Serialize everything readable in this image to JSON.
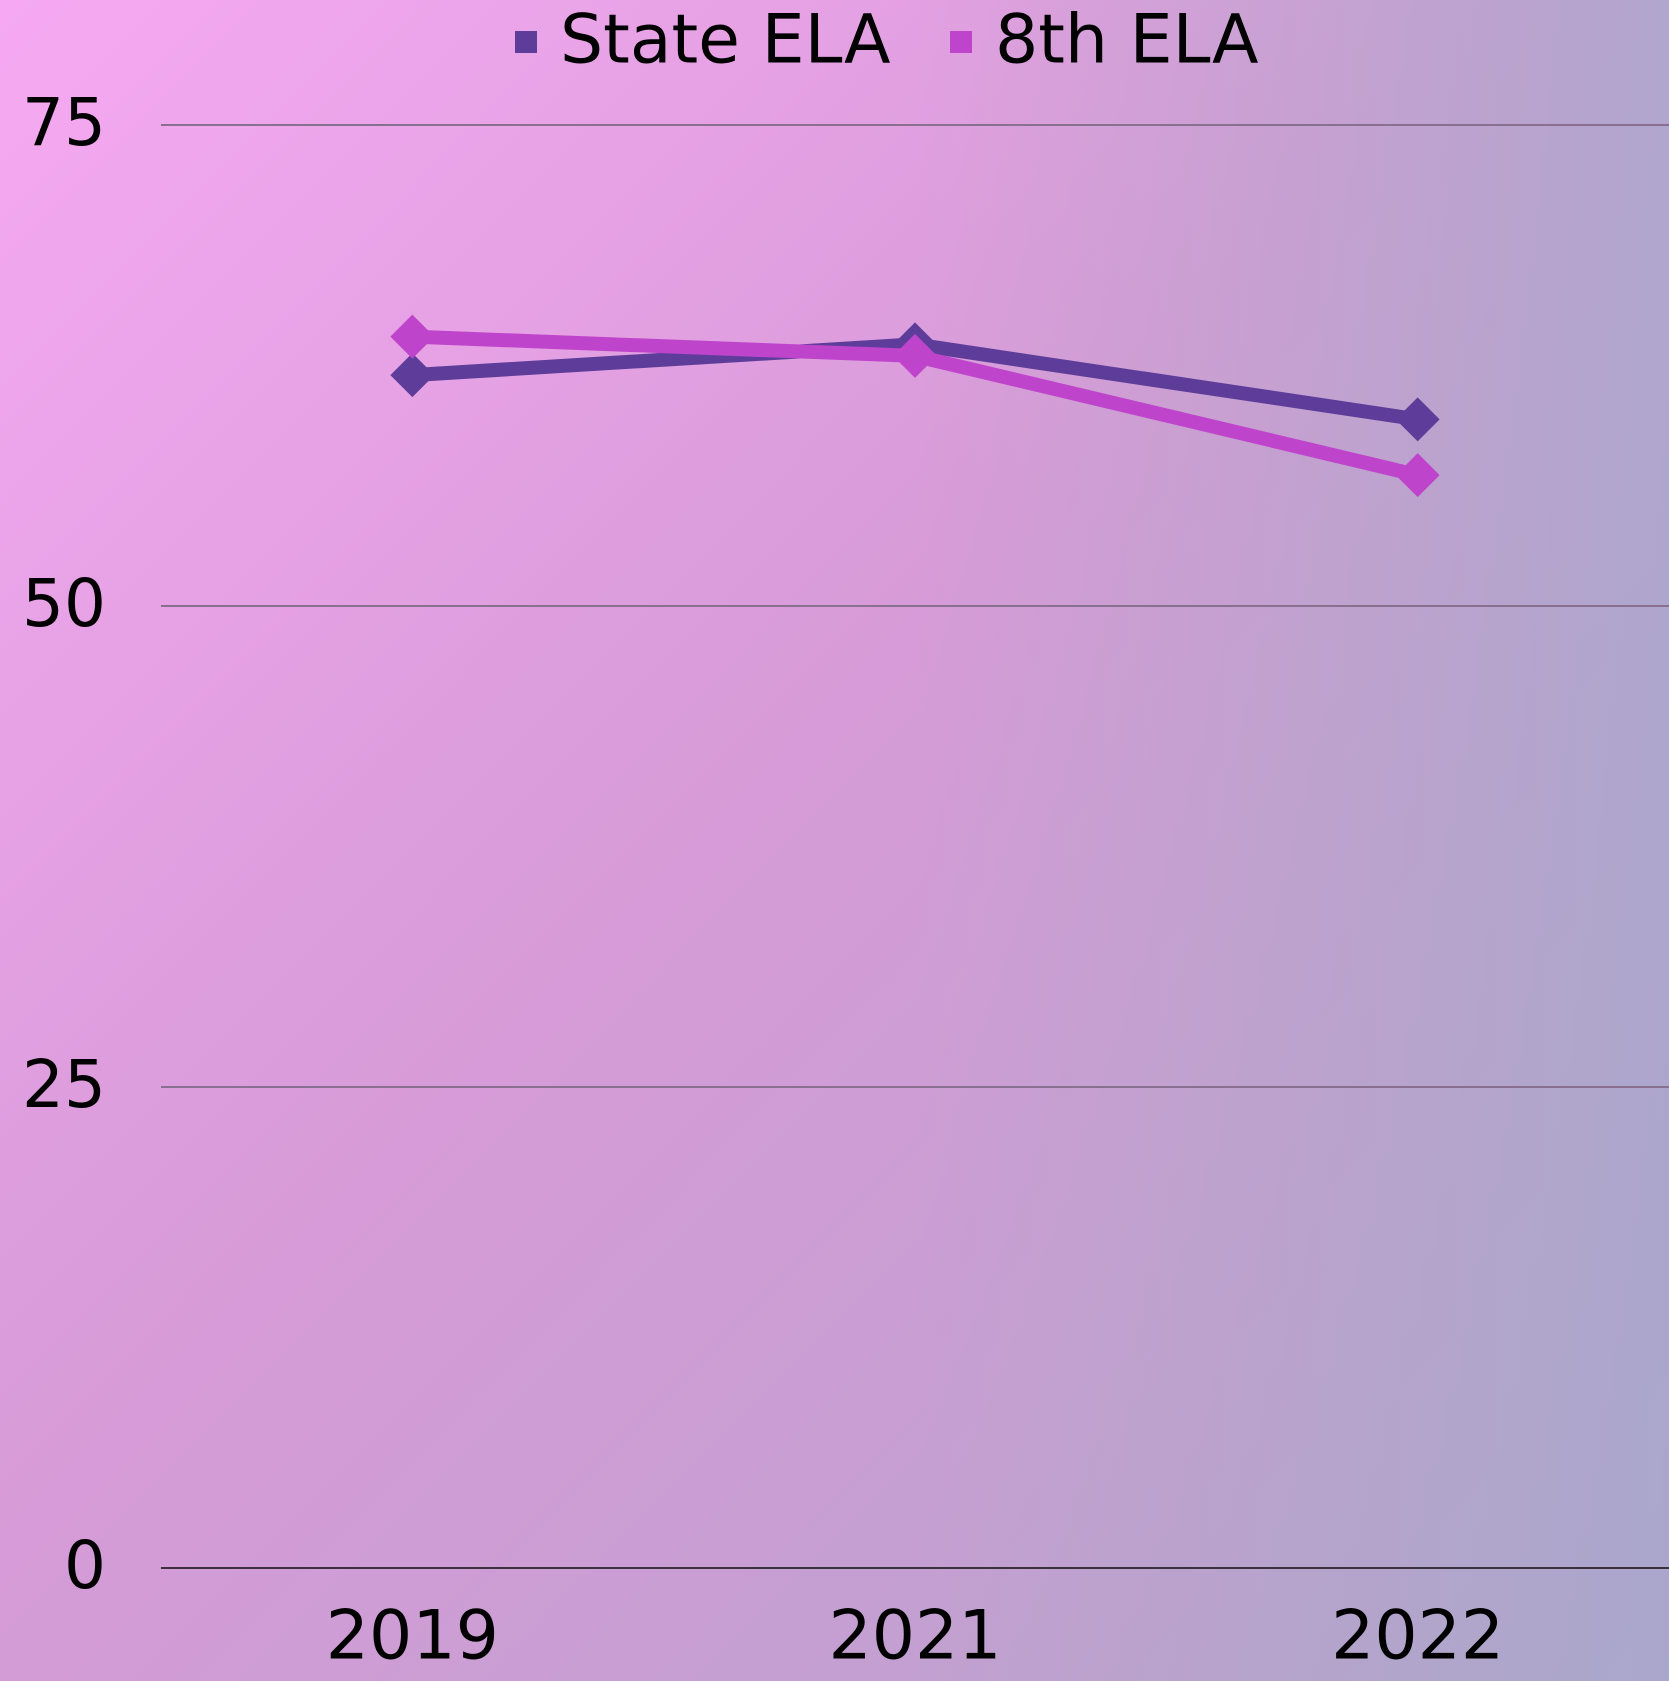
{
  "chart_data": {
    "type": "line",
    "categories": [
      "2019",
      "2021",
      "2022"
    ],
    "series": [
      {
        "name": "State ELA",
        "color": "#5e3d9a",
        "values": [
          62,
          63.6,
          59.7
        ]
      },
      {
        "name": "8th ELA",
        "color": "#bf44cc",
        "values": [
          64,
          63,
          56.8
        ]
      }
    ],
    "ylim": [
      0,
      75
    ],
    "yticks": [
      0,
      25,
      50,
      75
    ],
    "grid": true,
    "legend": "top"
  }
}
